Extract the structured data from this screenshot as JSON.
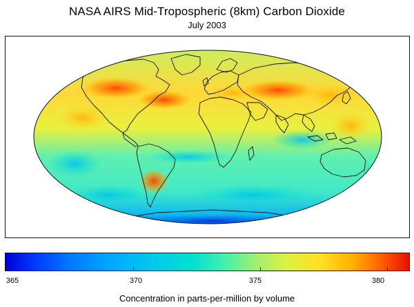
{
  "header": {
    "title": "NASA AIRS Mid-Tropospheric (8km) Carbon Dioxide",
    "subtitle": "July 2003"
  },
  "colorbar": {
    "label": "Concentration in parts-per-million by volume",
    "ticks": [
      "365",
      "370",
      "375",
      "380"
    ],
    "range": [
      364,
      381.5
    ],
    "colors": [
      "#0000d8",
      "#00a8ff",
      "#00e0d0",
      "#e0f040",
      "#ffb000",
      "#e81000"
    ]
  }
}
